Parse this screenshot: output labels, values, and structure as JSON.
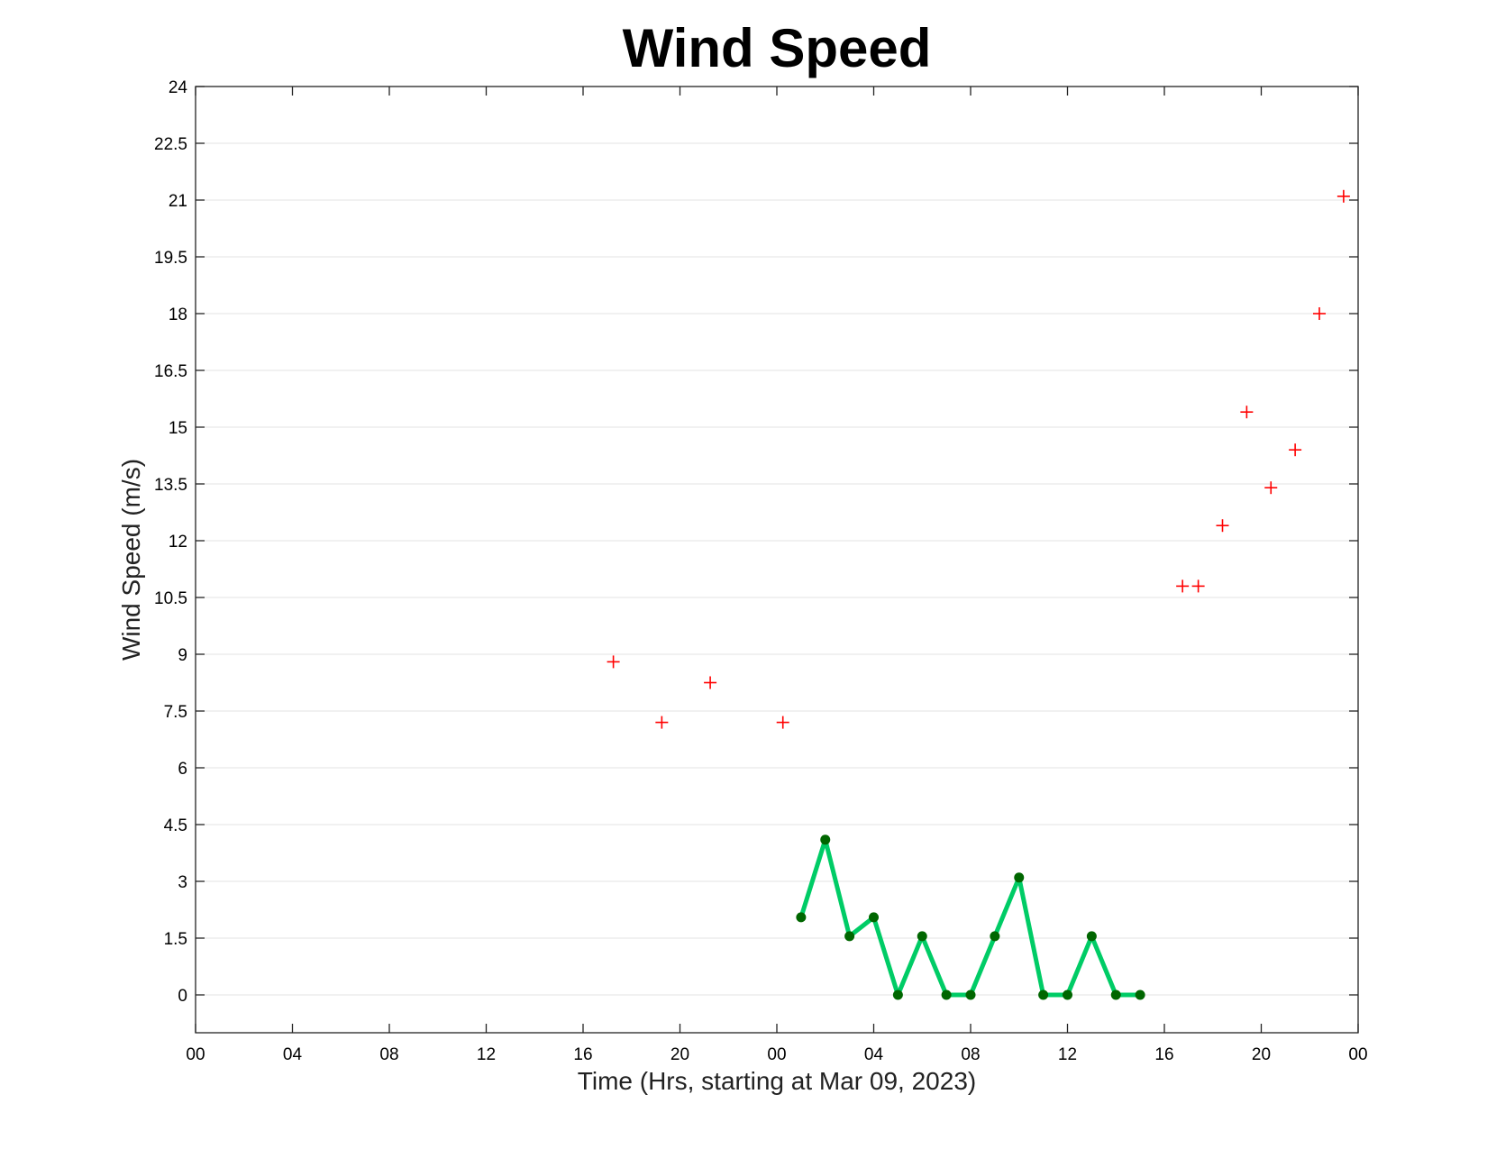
{
  "chart_data": {
    "type": "line",
    "title": "Wind Speed",
    "xlabel": "Time (Hrs, starting at Mar 09, 2023)",
    "ylabel": "Wind Speed (m/s)",
    "xlim": [
      0,
      48
    ],
    "ylim": [
      -1,
      24
    ],
    "x_ticks": [
      0,
      4,
      8,
      12,
      16,
      20,
      24,
      28,
      32,
      36,
      40,
      44,
      48
    ],
    "x_tick_labels": [
      "00",
      "04",
      "08",
      "12",
      "16",
      "20",
      "00",
      "04",
      "08",
      "12",
      "16",
      "20",
      "00"
    ],
    "y_ticks": [
      0,
      1.5,
      3,
      4.5,
      6,
      7.5,
      9,
      10.5,
      12,
      13.5,
      15,
      16.5,
      18,
      19.5,
      21,
      22.5,
      24
    ],
    "y_tick_labels": [
      "0",
      "1.5",
      "3",
      "4.5",
      "6",
      "7.5",
      "9",
      "10.5",
      "12",
      "13.5",
      "15",
      "16.5",
      "18",
      "19.5",
      "21",
      "22.5",
      "24"
    ],
    "grid": "horizontal",
    "series": [
      {
        "type": "scatter",
        "marker": "plus",
        "color": "#ff0000",
        "x": [
          17.25,
          19.25,
          21.25,
          24.25,
          40.75,
          41.4,
          42.4,
          43.4,
          44.4,
          45.4,
          46.4,
          47.4
        ],
        "values": [
          8.8,
          7.2,
          8.25,
          7.2,
          10.8,
          10.8,
          12.4,
          15.4,
          13.4,
          14.4,
          18,
          21.1
        ]
      },
      {
        "type": "line",
        "marker": "dot",
        "color": "#00cc66",
        "marker_color": "#006600",
        "x": [
          25,
          26,
          27,
          28,
          29,
          30,
          31,
          32,
          33,
          34,
          35,
          36,
          37,
          38,
          39
        ],
        "values": [
          2.05,
          4.1,
          1.55,
          2.05,
          0,
          1.55,
          0,
          0,
          1.55,
          3.1,
          0,
          0,
          1.55,
          0,
          0
        ]
      }
    ]
  }
}
